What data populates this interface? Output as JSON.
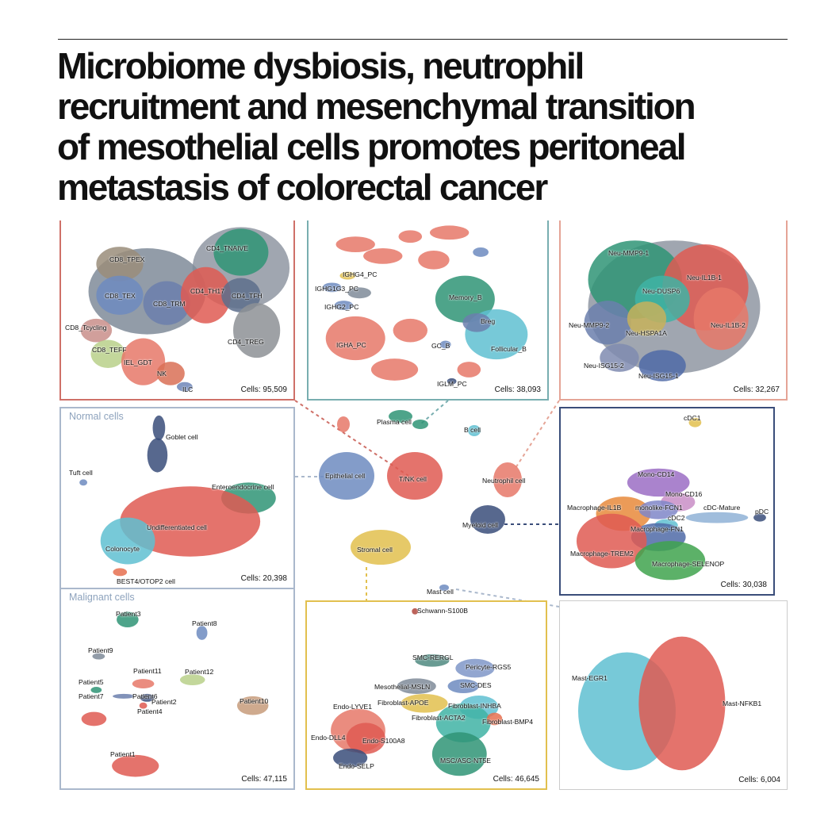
{
  "title_lines": [
    "Microbiome dysbiosis, neutrophil",
    "recruitment and mesenchymal transition",
    "of mesothelial cells promotes peritoneal",
    "metastasis of colorectal cancer"
  ],
  "colors": {
    "red_frame": "#cf7068",
    "teal_frame": "#78aeb0",
    "salmon_frame": "#e5a496",
    "blue_frame": "#aab8cc",
    "navy_frame": "#3a4d7a",
    "gold_frame": "#e2c04e",
    "grey_frame": "#cccccc"
  },
  "panels": {
    "tnk": {
      "count": "Cells: 95,509",
      "labels": [
        "CD4_TNAIVE",
        "CD8_TPEX",
        "CD8_TEX",
        "CD8_TRM",
        "CD4_TH17",
        "CD4_TFH",
        "CD8_Tcycling",
        "CD8_TEFF",
        "IEL_GDT",
        "NK",
        "ILC",
        "CD4_TREG"
      ]
    },
    "bcell": {
      "count": "Cells: 38,093",
      "labels": [
        "IGHG4_PC",
        "IGHG1G3_PC",
        "IGHG2_PC",
        "IGHA_PC",
        "Memory_B",
        "Breg",
        "GC_B",
        "Follicular_B",
        "IGLM_PC"
      ]
    },
    "neutrophil": {
      "count": "Cells: 32,267",
      "labels": [
        "Neu-MMP9-1",
        "Neu-IL1B-1",
        "Neu-DUSP6",
        "Neu-MMP9-2",
        "Neu-HSPA1A",
        "Neu-IL1B-2",
        "Neu-ISG15-2",
        "Neu-ISG15-1"
      ]
    },
    "normal": {
      "subtitle": "Normal cells",
      "count": "Cells: 20,398",
      "labels": [
        "Goblet cell",
        "Tuft cell",
        "Enteroendocrine cell",
        "Undifferentiated cell",
        "Colonocyte",
        "BEST4/OTOP2 cell"
      ]
    },
    "malignant": {
      "subtitle": "Malignant cells",
      "count": "Cells: 47,115",
      "labels": [
        "Patient3",
        "Patient8",
        "Patient9",
        "Patient11",
        "Patient12",
        "Patient5",
        "Patient7",
        "Patient6",
        "Patient2",
        "Patient4",
        "Patient10",
        "Patient1"
      ]
    },
    "myeloid": {
      "count": "Cells: 30,038",
      "labels": [
        "cDC1",
        "Mono-CD14",
        "Mono-CD16",
        "Macrophage-IL1B",
        "monolike-FCN1",
        "cDC-Mature",
        "pDC",
        "cDC2",
        "Macrophage-FN1",
        "Macrophage-TREM2",
        "Macrophage-SELENOP"
      ]
    },
    "stromal": {
      "count": "Cells: 46,645",
      "labels": [
        "Schwann-S100B",
        "SMC-RERGL",
        "Pericyte-RGS5",
        "Mesothelial-MSLN",
        "SMC-DES",
        "Fibroblast-APOE",
        "Fibroblast-INHBA",
        "Fibroblast-ACTA2",
        "Fibroblast-BMP4",
        "Endo-LYVE1",
        "Endo-DLL4",
        "Endo-S100A8",
        "Endo-SELP",
        "MSC/ASC-NT5E"
      ]
    },
    "mast": {
      "count": "Cells: 6,004",
      "labels": [
        "Mast-EGR1",
        "Mast-NFKB1"
      ]
    }
  },
  "overview": {
    "labels": [
      "Plasma cell",
      "B cell",
      "Epithelial cell",
      "T/NK cell",
      "Neutrophil cell",
      "Myeloid cell",
      "Stromal cell",
      "Mast cell"
    ]
  }
}
